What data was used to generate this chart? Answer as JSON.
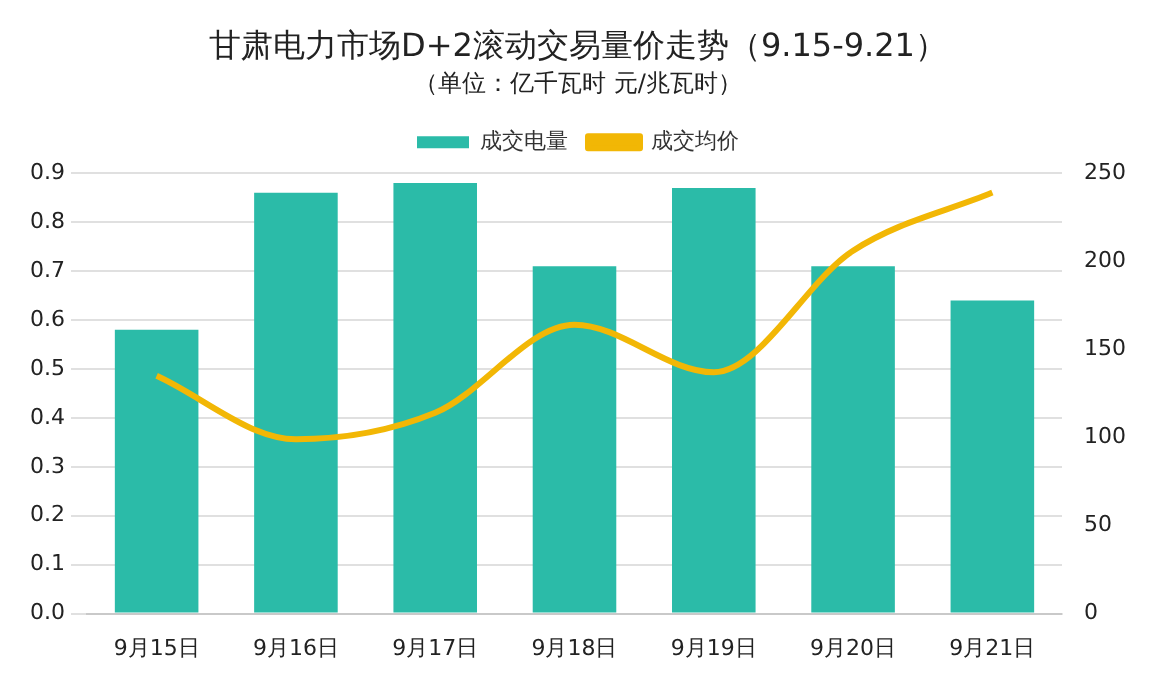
{
  "chart_data": {
    "type": "bar",
    "title": "甘肃电力市场D+2滚动交易量价走势（9.15-9.21）",
    "subtitle": "（单位：亿千瓦时 元/兆瓦时）",
    "categories": [
      "9月15日",
      "9月16日",
      "9月17日",
      "9月18日",
      "9月19日",
      "9月20日",
      "9月21日"
    ],
    "series": [
      {
        "name": "成交电量",
        "color": "#2bbba8",
        "values": [
          0.58,
          0.86,
          0.88,
          0.71,
          0.87,
          0.71,
          0.64
        ]
      },
      {
        "name": "成交均价",
        "type": "line",
        "axis": "y2",
        "color": "#f2b705",
        "values": [
          135,
          99,
          114,
          164,
          137,
          206,
          239
        ]
      }
    ],
    "ylim": [
      0,
      0.9
    ],
    "yticks": [
      {
        "value": 0,
        "label": "0.0"
      },
      {
        "value": 0.1,
        "label": "0.1"
      },
      {
        "value": 0.2,
        "label": "0.2"
      },
      {
        "value": 0.3,
        "label": "0.3"
      },
      {
        "value": 0.4,
        "label": "0.4"
      },
      {
        "value": 0.5,
        "label": "0.5"
      },
      {
        "value": 0.6,
        "label": "0.6"
      },
      {
        "value": 0.7,
        "label": "0.7"
      },
      {
        "value": 0.8,
        "label": "0.8"
      },
      {
        "value": 0.9,
        "label": "0.9"
      }
    ],
    "y2lim": [
      0,
      250
    ],
    "y2ticks": [
      0,
      50,
      100,
      150,
      200,
      250
    ],
    "grid": "y",
    "legend": "top",
    "marker": "none",
    "line_style": "solid"
  }
}
